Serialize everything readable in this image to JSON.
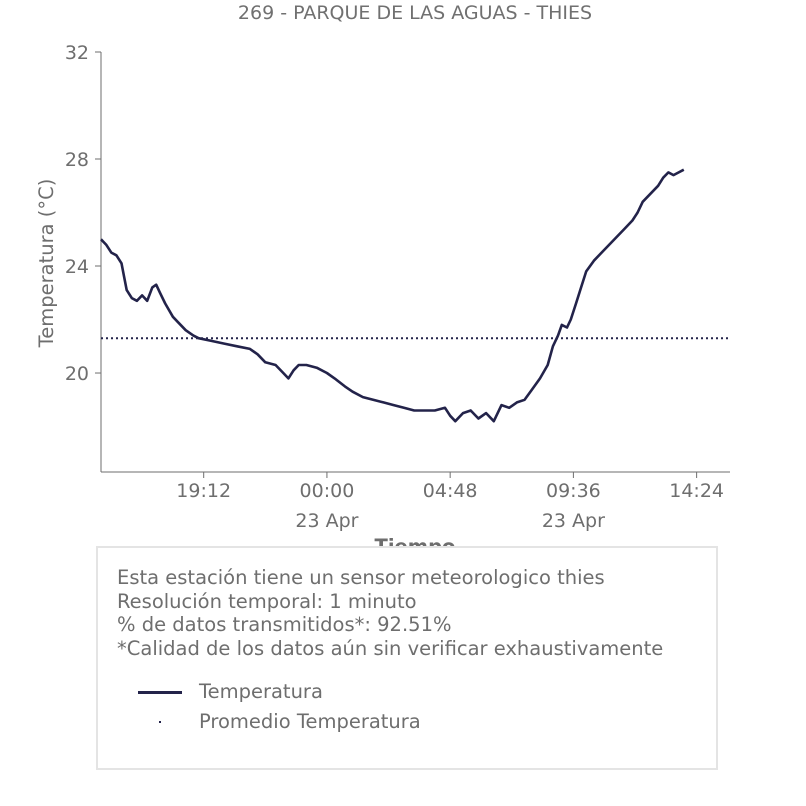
{
  "title": "269 - PARQUE DE LAS AGUAS - THIES",
  "chart_data": {
    "type": "line",
    "ylabel": "Temperatura (°C)",
    "xlabel": "Tiempo",
    "ylim": [
      16.3,
      32
    ],
    "xlim_hours": [
      15.2,
      39.7
    ],
    "y_ticks": [
      20,
      24,
      28,
      32
    ],
    "x_ticks": [
      {
        "hour": 19.2,
        "label": "19:12",
        "sublabel": ""
      },
      {
        "hour": 24.0,
        "label": "00:00",
        "sublabel": "23 Apr"
      },
      {
        "hour": 28.8,
        "label": "04:48",
        "sublabel": ""
      },
      {
        "hour": 33.6,
        "label": "09:36",
        "sublabel": "23 Apr"
      },
      {
        "hour": 38.4,
        "label": "14:24",
        "sublabel": ""
      }
    ],
    "series": [
      {
        "name": "Temperatura",
        "color": "#23234a",
        "points": [
          [
            15.2,
            25.0
          ],
          [
            15.4,
            24.8
          ],
          [
            15.6,
            24.5
          ],
          [
            15.8,
            24.4
          ],
          [
            16.0,
            24.1
          ],
          [
            16.1,
            23.6
          ],
          [
            16.2,
            23.1
          ],
          [
            16.4,
            22.8
          ],
          [
            16.6,
            22.7
          ],
          [
            16.8,
            22.9
          ],
          [
            17.0,
            22.7
          ],
          [
            17.2,
            23.2
          ],
          [
            17.35,
            23.3
          ],
          [
            17.5,
            23.0
          ],
          [
            17.7,
            22.6
          ],
          [
            18.0,
            22.1
          ],
          [
            18.2,
            21.9
          ],
          [
            18.5,
            21.6
          ],
          [
            18.8,
            21.4
          ],
          [
            19.0,
            21.3
          ],
          [
            19.5,
            21.2
          ],
          [
            20.0,
            21.1
          ],
          [
            20.5,
            21.0
          ],
          [
            21.0,
            20.9
          ],
          [
            21.3,
            20.7
          ],
          [
            21.6,
            20.4
          ],
          [
            22.0,
            20.3
          ],
          [
            22.3,
            20.0
          ],
          [
            22.5,
            19.8
          ],
          [
            22.7,
            20.1
          ],
          [
            22.9,
            20.3
          ],
          [
            23.2,
            20.3
          ],
          [
            23.6,
            20.2
          ],
          [
            24.0,
            20.0
          ],
          [
            24.3,
            19.8
          ],
          [
            24.7,
            19.5
          ],
          [
            25.0,
            19.3
          ],
          [
            25.4,
            19.1
          ],
          [
            25.8,
            19.0
          ],
          [
            26.2,
            18.9
          ],
          [
            26.6,
            18.8
          ],
          [
            27.0,
            18.7
          ],
          [
            27.4,
            18.6
          ],
          [
            27.8,
            18.6
          ],
          [
            28.2,
            18.6
          ],
          [
            28.6,
            18.7
          ],
          [
            28.8,
            18.4
          ],
          [
            29.0,
            18.2
          ],
          [
            29.3,
            18.5
          ],
          [
            29.6,
            18.6
          ],
          [
            29.9,
            18.3
          ],
          [
            30.2,
            18.5
          ],
          [
            30.5,
            18.2
          ],
          [
            30.8,
            18.8
          ],
          [
            31.1,
            18.7
          ],
          [
            31.4,
            18.9
          ],
          [
            31.7,
            19.0
          ],
          [
            32.0,
            19.4
          ],
          [
            32.3,
            19.8
          ],
          [
            32.6,
            20.3
          ],
          [
            32.8,
            21.0
          ],
          [
            33.0,
            21.4
          ],
          [
            33.15,
            21.8
          ],
          [
            33.35,
            21.7
          ],
          [
            33.5,
            22.0
          ],
          [
            33.7,
            22.6
          ],
          [
            33.9,
            23.2
          ],
          [
            34.1,
            23.8
          ],
          [
            34.4,
            24.2
          ],
          [
            34.7,
            24.5
          ],
          [
            35.0,
            24.8
          ],
          [
            35.3,
            25.1
          ],
          [
            35.6,
            25.4
          ],
          [
            35.9,
            25.7
          ],
          [
            36.1,
            26.0
          ],
          [
            36.3,
            26.4
          ],
          [
            36.6,
            26.7
          ],
          [
            36.9,
            27.0
          ],
          [
            37.1,
            27.3
          ],
          [
            37.3,
            27.5
          ],
          [
            37.5,
            27.4
          ],
          [
            37.7,
            27.5
          ],
          [
            37.9,
            27.6
          ]
        ]
      },
      {
        "name": "Promedio Temperatura",
        "color": "#23234a",
        "value": 21.3
      }
    ],
    "grid": false,
    "legend_placement": "bottom"
  },
  "info": {
    "line1": "Esta estación tiene un sensor meteorologico thies",
    "line2": "Resolución temporal: 1 minuto",
    "line3": "% de datos transmitidos*: 92.51%",
    "line4": "*Calidad de los datos aún sin verificar exhaustivamente"
  },
  "legend": {
    "item1": "Temperatura",
    "item2": "Promedio Temperatura"
  }
}
